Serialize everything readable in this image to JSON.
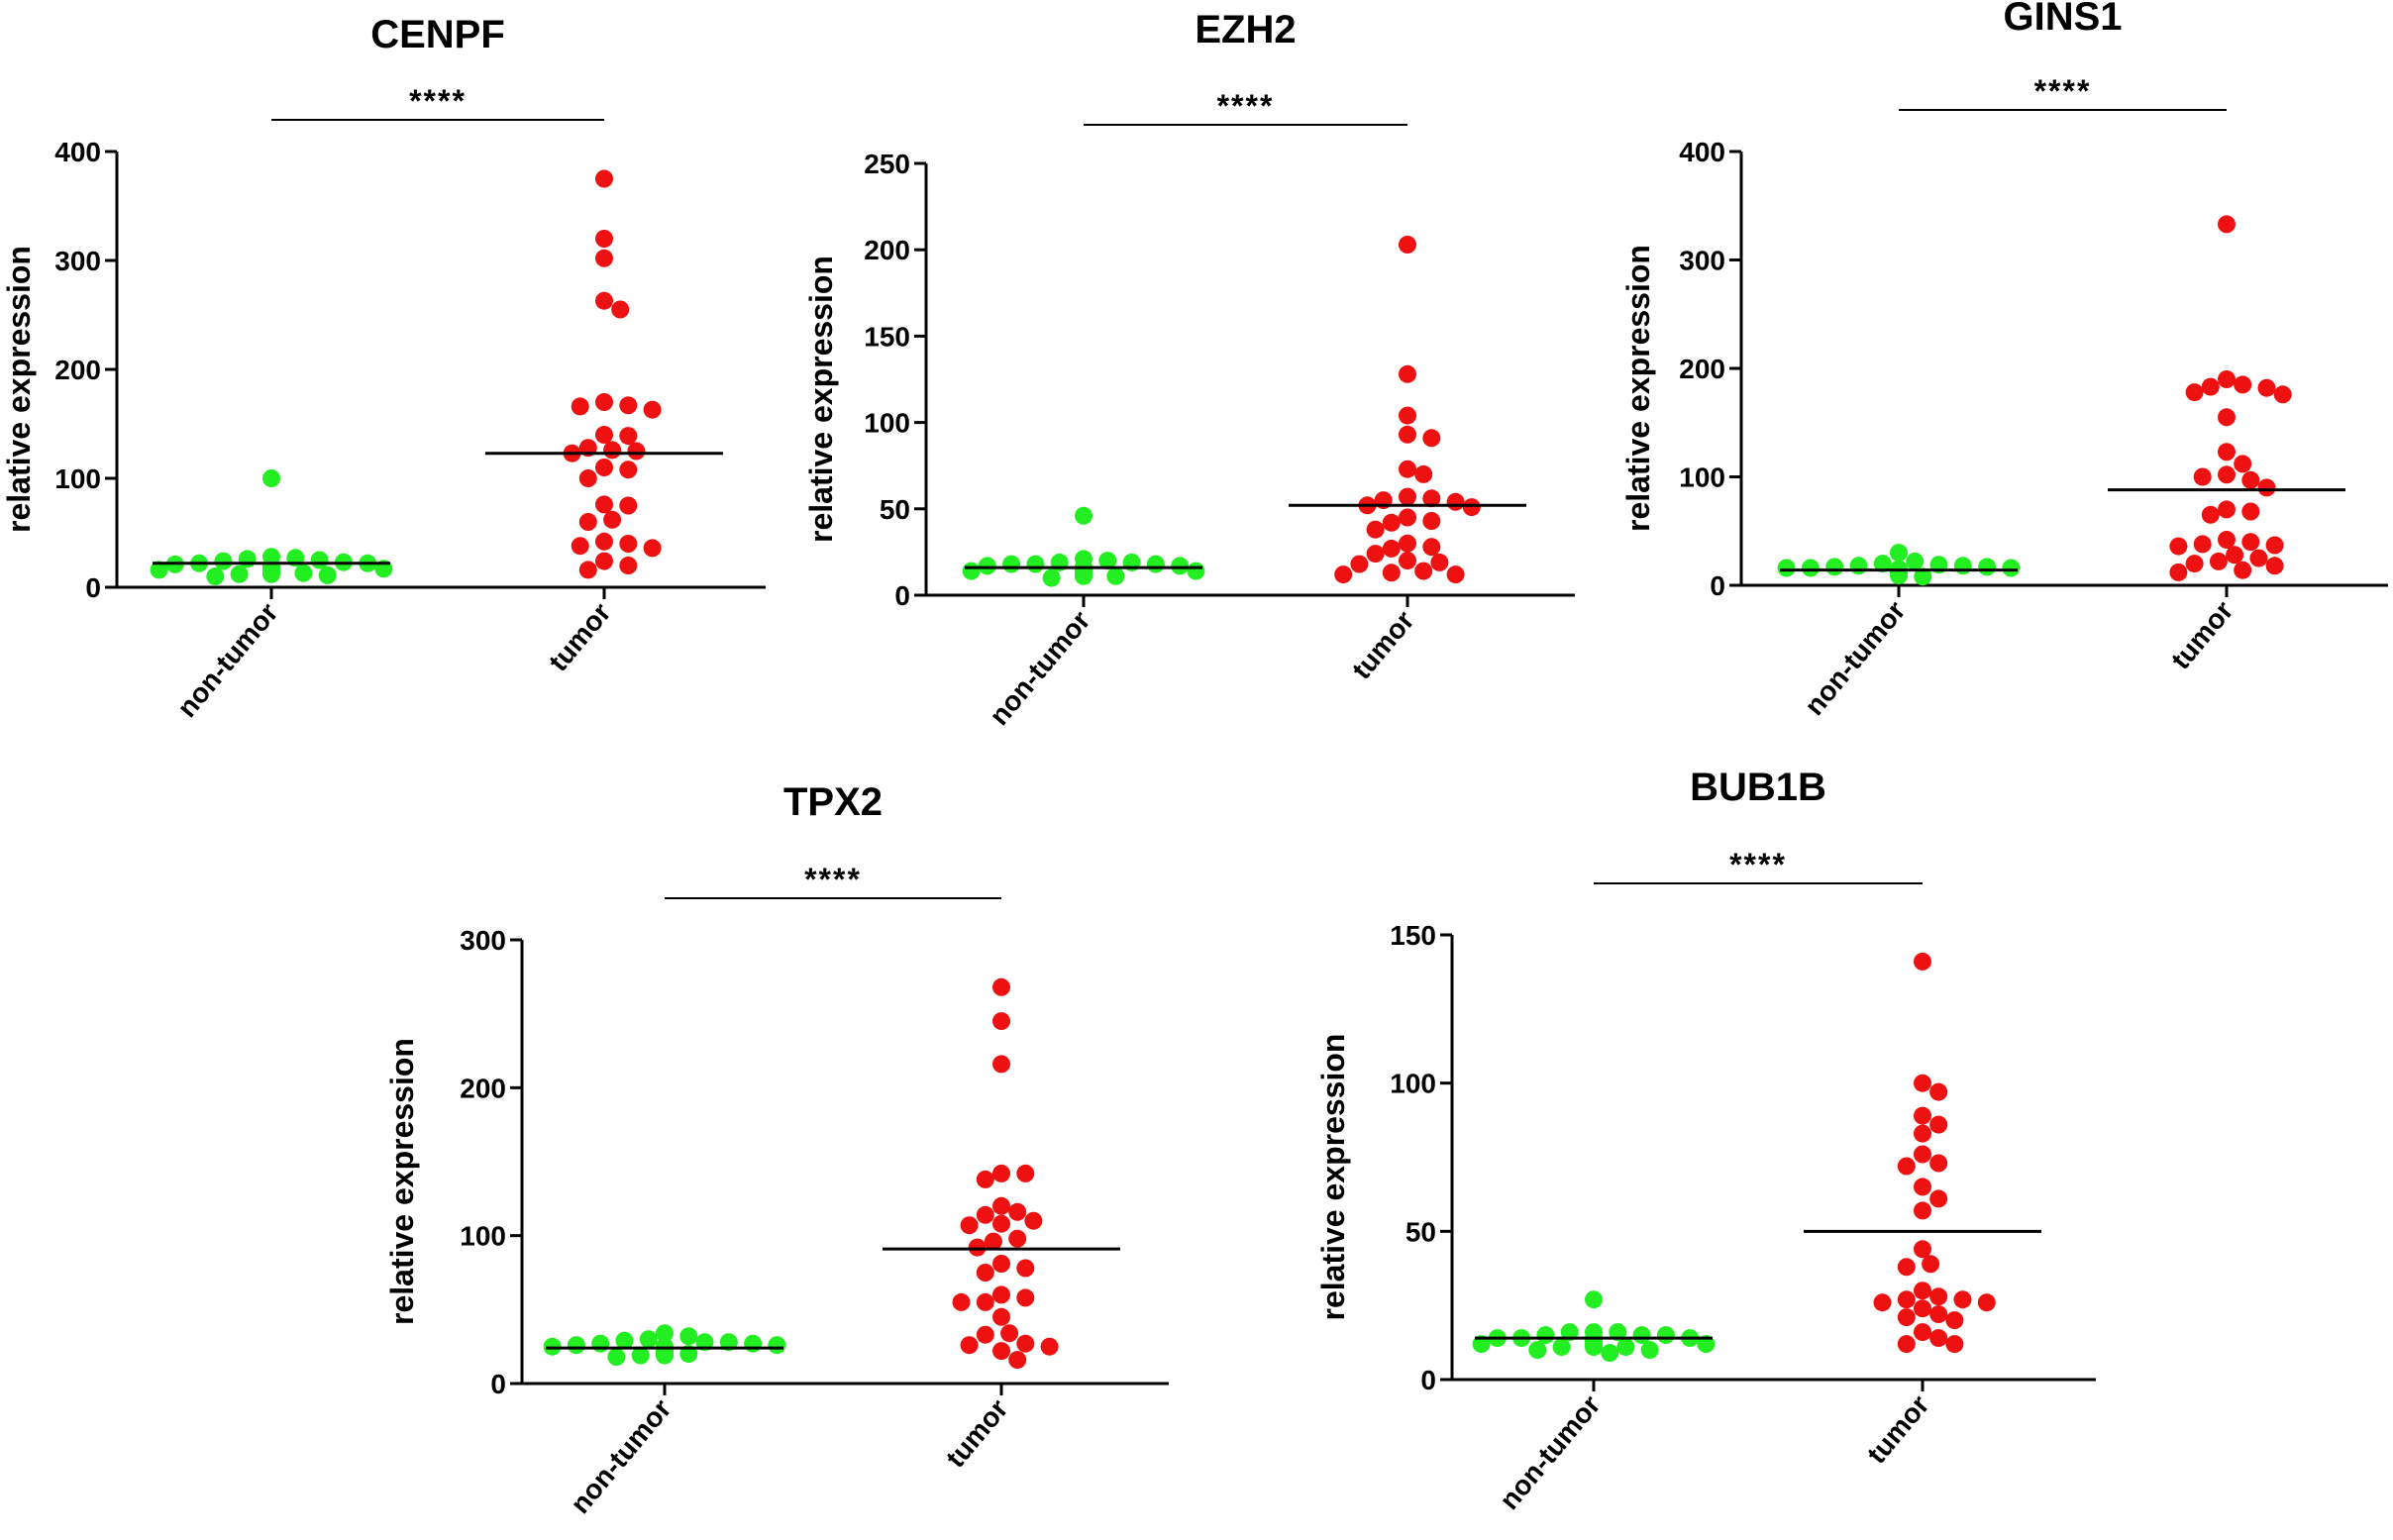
{
  "colors": {
    "nontumor": "#22ee22",
    "tumor": "#ee1111",
    "axis": "#000000"
  },
  "chart_data": [
    {
      "type": "scatter",
      "title": "CENPF",
      "ylabel": "relative expression",
      "ylim": [
        0,
        400
      ],
      "yticks": [
        0,
        100,
        200,
        300,
        400
      ],
      "categories": [
        "non-tumor",
        "tumor"
      ],
      "significance": "****",
      "series": [
        {
          "name": "non-tumor",
          "mean": 22,
          "values": [
            100,
            28,
            25,
            23,
            22,
            20,
            19,
            18,
            17,
            16,
            15,
            14,
            13,
            12,
            11,
            10,
            26,
            24,
            21,
            20,
            18,
            16,
            14,
            12,
            27,
            22,
            19,
            17,
            15,
            13
          ]
        },
        {
          "name": "tumor",
          "mean": 123,
          "values": [
            375,
            320,
            302,
            263,
            255,
            170,
            167,
            166,
            163,
            140,
            139,
            128,
            126,
            125,
            123,
            110,
            108,
            100,
            76,
            75,
            62,
            60,
            42,
            40,
            38,
            36,
            24,
            20,
            16
          ]
        }
      ]
    },
    {
      "type": "scatter",
      "title": "EZH2",
      "ylabel": "relative expression",
      "ylim": [
        0,
        250
      ],
      "yticks": [
        0,
        50,
        100,
        150,
        200,
        250
      ],
      "categories": [
        "non-tumor",
        "tumor"
      ],
      "significance": "****",
      "series": [
        {
          "name": "non-tumor",
          "mean": 16,
          "values": [
            46,
            20,
            19,
            18,
            18,
            17,
            16,
            16,
            15,
            15,
            14,
            14,
            13,
            12,
            11,
            10,
            19,
            17,
            15,
            13,
            21,
            16,
            14,
            12,
            18,
            15,
            13,
            11
          ]
        },
        {
          "name": "tumor",
          "mean": 52,
          "values": [
            203,
            128,
            104,
            93,
            91,
            73,
            70,
            57,
            56,
            55,
            54,
            52,
            51,
            45,
            43,
            42,
            38,
            30,
            28,
            27,
            24,
            20,
            19,
            18,
            14,
            13,
            12,
            12
          ]
        }
      ]
    },
    {
      "type": "scatter",
      "title": "GINS1",
      "ylabel": "relative expression",
      "ylim": [
        0,
        400
      ],
      "yticks": [
        0,
        100,
        200,
        300,
        400
      ],
      "categories": [
        "non-tumor",
        "tumor"
      ],
      "significance": "****",
      "series": [
        {
          "name": "non-tumor",
          "mean": 14,
          "values": [
            30,
            22,
            19,
            18,
            17,
            16,
            15,
            14,
            13,
            12,
            11,
            10,
            9,
            8,
            18,
            16,
            14,
            12,
            10,
            17,
            15,
            13,
            11,
            20,
            16
          ]
        },
        {
          "name": "tumor",
          "mean": 88,
          "values": [
            333,
            190,
            185,
            183,
            182,
            178,
            176,
            155,
            123,
            112,
            102,
            100,
            97,
            90,
            70,
            68,
            65,
            42,
            40,
            38,
            37,
            36,
            28,
            25,
            22,
            20,
            18,
            14,
            12
          ]
        }
      ]
    },
    {
      "type": "scatter",
      "title": "TPX2",
      "ylabel": "relative expression",
      "ylim": [
        0,
        300
      ],
      "yticks": [
        0,
        100,
        200,
        300
      ],
      "categories": [
        "non-tumor",
        "tumor"
      ],
      "significance": "****",
      "series": [
        {
          "name": "non-tumor",
          "mean": 24,
          "values": [
            34,
            32,
            30,
            28,
            27,
            26,
            25,
            24,
            23,
            22,
            21,
            20,
            19,
            18,
            29,
            26,
            24,
            22,
            20,
            27,
            25,
            23,
            21,
            19,
            28
          ]
        },
        {
          "name": "tumor",
          "mean": 91,
          "values": [
            268,
            245,
            216,
            142,
            142,
            138,
            120,
            116,
            114,
            110,
            108,
            107,
            98,
            96,
            92,
            81,
            78,
            75,
            60,
            58,
            55,
            55,
            45,
            34,
            33,
            27,
            26,
            25,
            22,
            16
          ]
        }
      ]
    },
    {
      "type": "scatter",
      "title": "BUB1B",
      "ylabel": "relative expression",
      "ylim": [
        0,
        150
      ],
      "yticks": [
        0,
        50,
        100,
        150
      ],
      "categories": [
        "non-tumor",
        "tumor"
      ],
      "significance": "****",
      "series": [
        {
          "name": "non-tumor",
          "mean": 14,
          "values": [
            27,
            16,
            15,
            15,
            14,
            14,
            13,
            13,
            12,
            12,
            11,
            11,
            10,
            16,
            14,
            12,
            15,
            13,
            11,
            10,
            9,
            16,
            14,
            12
          ]
        },
        {
          "name": "tumor",
          "mean": 50,
          "values": [
            141,
            100,
            97,
            89,
            86,
            83,
            76,
            73,
            72,
            65,
            61,
            57,
            44,
            39,
            38,
            30,
            28,
            27,
            27,
            26,
            26,
            24,
            22,
            21,
            20,
            16,
            14,
            12,
            12
          ]
        }
      ]
    }
  ]
}
